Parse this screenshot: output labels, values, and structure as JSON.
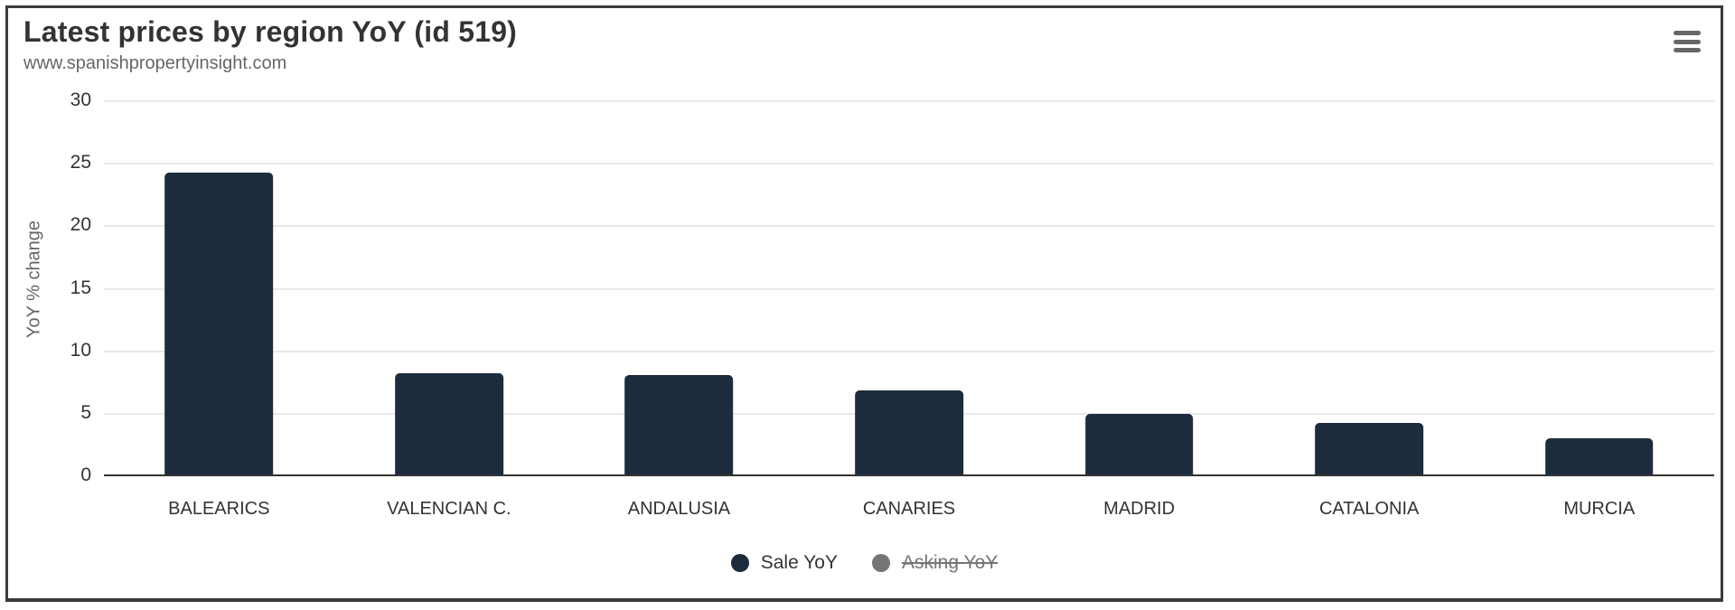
{
  "header": {
    "title": "Latest prices by region YoY (id 519)",
    "subtitle": "www.spanishpropertyinsight.com"
  },
  "export_menu": {
    "icon": "hamburger-menu-icon"
  },
  "chart_data": {
    "type": "bar",
    "title": "Latest prices by region YoY (id 519)",
    "subtitle": "www.spanishpropertyinsight.com",
    "categories": [
      "BALEARICS",
      "VALENCIAN C.",
      "ANDALUSIA",
      "CANARIES",
      "MADRID",
      "CATALONIA",
      "MURCIA"
    ],
    "series": [
      {
        "name": "Sale YoY",
        "color": "#1d2c3c",
        "visible": true,
        "values": [
          24.2,
          8.2,
          8.0,
          6.8,
          4.9,
          4.2,
          3.0
        ]
      },
      {
        "name": "Asking YoY",
        "color": "#757575",
        "visible": false,
        "values": []
      }
    ],
    "xlabel": "",
    "ylabel": "YoY % change",
    "ylim": [
      0,
      30
    ],
    "yticks": [
      0,
      5,
      10,
      15,
      20,
      25,
      30
    ],
    "grid": true,
    "legend_position": "bottom"
  },
  "colors": {
    "bar": "#1d2c3c",
    "gridline": "#e8e8e8",
    "axis_line": "#333333",
    "title_text": "#333333",
    "subtitle_text": "#666666",
    "axis_label_text": "#333333",
    "legend_disabled": "#757575",
    "chart_border": "#3a3a3a",
    "menu_icon": "#666666"
  }
}
